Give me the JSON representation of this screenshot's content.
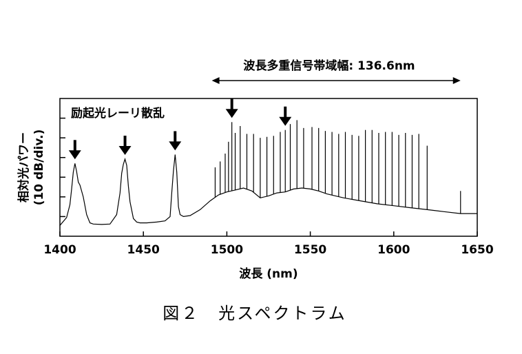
{
  "figure": {
    "caption": "図２　光スペクトラム"
  },
  "chart_data": {
    "type": "line",
    "title": "",
    "xlabel": "波長 (nm)",
    "ylabel_line1": "相対光パワー",
    "ylabel_line2": "(10 dB/div.)",
    "xlim": [
      1400,
      1650
    ],
    "x_ticks": [
      1400,
      1450,
      1500,
      1550,
      1600,
      1650
    ],
    "ylim": [
      0,
      7
    ],
    "y_unit_note": "divisions of 10 dB, relative",
    "grid": false,
    "annotations": {
      "rayleigh": "励起光レーリ散乱",
      "bandwidth": "波長多重信号帯域幅: 136.6nm",
      "bandwidth_range": [
        1491,
        1640
      ]
    },
    "arrow_wavelengths": [
      1409,
      1439,
      1469,
      1503,
      1535
    ],
    "series": [
      {
        "x": [
          1400,
          1404,
          1406,
          1407,
          1408,
          1409,
          1410,
          1411,
          1412,
          1414,
          1416,
          1418,
          1420,
          1425,
          1430,
          1434,
          1436,
          1437,
          1438,
          1439,
          1440,
          1441,
          1442,
          1444,
          1446,
          1448,
          1452,
          1458,
          1463,
          1466,
          1467,
          1468,
          1469,
          1470,
          1471,
          1472,
          1474,
          1478,
          1484,
          1490,
          1495,
          1500,
          1505,
          1510,
          1515,
          1520,
          1525,
          1530,
          1535,
          1540,
          1545,
          1550,
          1555,
          1560,
          1570,
          1580,
          1590,
          1600,
          1610,
          1620,
          1630,
          1640,
          1650
        ],
        "y": [
          0.55,
          0.95,
          1.6,
          2.4,
          3.25,
          3.7,
          3.3,
          2.75,
          2.6,
          2.0,
          1.1,
          0.68,
          0.62,
          0.6,
          0.62,
          1.1,
          2.2,
          3.2,
          3.65,
          3.92,
          3.6,
          2.55,
          1.75,
          0.9,
          0.72,
          0.68,
          0.68,
          0.72,
          0.78,
          1.0,
          2.2,
          3.3,
          4.15,
          3.25,
          1.5,
          1.1,
          1.0,
          1.05,
          1.35,
          1.8,
          2.1,
          2.25,
          2.35,
          2.45,
          2.3,
          1.95,
          2.05,
          2.2,
          2.25,
          2.4,
          2.45,
          2.4,
          2.3,
          2.15,
          1.95,
          1.8,
          1.65,
          1.55,
          1.45,
          1.35,
          1.25,
          1.15,
          1.15
        ]
      }
    ],
    "signal_channels": {
      "x": [
        1493,
        1496,
        1499,
        1501,
        1503,
        1505,
        1508,
        1512,
        1516,
        1520,
        1524,
        1528,
        1532,
        1535,
        1538,
        1542,
        1546,
        1551,
        1555,
        1559,
        1563,
        1567,
        1571,
        1575,
        1579,
        1583,
        1587,
        1591,
        1595,
        1599,
        1603,
        1607,
        1611,
        1615,
        1620,
        1640
      ],
      "peak_y": [
        3.5,
        3.8,
        4.2,
        4.8,
        5.8,
        5.25,
        5.6,
        5.2,
        5.2,
        5.0,
        5.05,
        5.1,
        5.3,
        5.4,
        5.7,
        5.9,
        5.5,
        5.55,
        5.5,
        5.35,
        5.3,
        5.2,
        5.3,
        5.15,
        5.1,
        5.4,
        5.4,
        5.25,
        5.3,
        5.3,
        5.15,
        5.25,
        5.15,
        5.2,
        4.6,
        2.3
      ]
    }
  }
}
